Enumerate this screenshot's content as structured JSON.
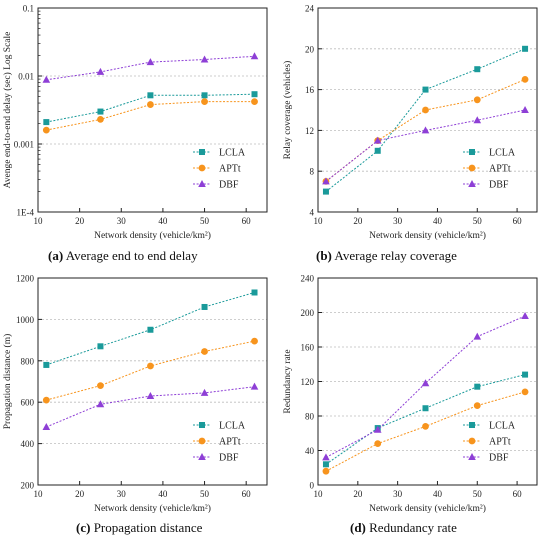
{
  "legend_labels": [
    "LCLA",
    "APTt",
    "DBF"
  ],
  "series_colors": {
    "LCLA": "#1a9a9a",
    "APTt": "#f7941d",
    "DBF": "#8e3fd6"
  },
  "captions": [
    {
      "letter": "(a)",
      "text": " Average end to end delay"
    },
    {
      "letter": "(b)",
      "text": " Average relay coverage"
    },
    {
      "letter": "(c)",
      "text": " Propagation distance"
    },
    {
      "letter": "(d)",
      "text": " Redundancy rate"
    }
  ],
  "chart_data": [
    {
      "type": "line",
      "ylabel": "Avenge end-to-end delay (sec) Log Scale",
      "xlabel": "Network density (vehicle/km²)",
      "x": [
        12,
        25,
        37,
        50,
        62
      ],
      "xlim": [
        10,
        65
      ],
      "xticks": [
        10,
        20,
        30,
        40,
        50,
        60
      ],
      "ylog": true,
      "ylim": [
        0.0001,
        0.1
      ],
      "yticks": [
        0.0001,
        0.001,
        0.01,
        0.1
      ],
      "ytick_labels": [
        "1E-4",
        "0.001",
        "0.01",
        "0.1"
      ],
      "grid": "horizontal dotted",
      "legend_position": "bottom-right",
      "series": [
        {
          "name": "LCLA",
          "values": [
            0.0021,
            0.003,
            0.0052,
            0.0052,
            0.0054
          ]
        },
        {
          "name": "APTt",
          "values": [
            0.0016,
            0.0023,
            0.0038,
            0.0042,
            0.0042
          ]
        },
        {
          "name": "DBF",
          "values": [
            0.0088,
            0.0115,
            0.016,
            0.0175,
            0.0195
          ]
        }
      ]
    },
    {
      "type": "line",
      "ylabel": "Relay coverage (vehicles)",
      "xlabel": "Network density (vehicle/km²)",
      "x": [
        12,
        25,
        37,
        50,
        62
      ],
      "xlim": [
        10,
        65
      ],
      "xticks": [
        10,
        20,
        30,
        40,
        50,
        60
      ],
      "ylim": [
        4,
        24
      ],
      "yticks": [
        4,
        8,
        12,
        16,
        20,
        24
      ],
      "grid": "horizontal dotted",
      "legend_position": "bottom-right",
      "series": [
        {
          "name": "LCLA",
          "values": [
            6,
            10,
            16,
            18,
            20
          ]
        },
        {
          "name": "APTt",
          "values": [
            7,
            11,
            14,
            15,
            17
          ]
        },
        {
          "name": "DBF",
          "values": [
            7,
            11,
            12,
            13,
            14
          ]
        }
      ]
    },
    {
      "type": "line",
      "ylabel": "Propagation distance (m)",
      "xlabel": "Network density (vehicle/km²)",
      "x": [
        12,
        25,
        37,
        50,
        62
      ],
      "xlim": [
        10,
        65
      ],
      "xticks": [
        10,
        20,
        30,
        40,
        50,
        60
      ],
      "ylim": [
        200,
        1200
      ],
      "yticks": [
        200,
        400,
        600,
        800,
        1000,
        1200
      ],
      "grid": "horizontal dotted",
      "legend_position": "bottom-right",
      "series": [
        {
          "name": "LCLA",
          "values": [
            780,
            870,
            950,
            1060,
            1130
          ]
        },
        {
          "name": "APTt",
          "values": [
            610,
            680,
            775,
            845,
            895
          ]
        },
        {
          "name": "DBF",
          "values": [
            480,
            590,
            630,
            645,
            675
          ]
        }
      ]
    },
    {
      "type": "line",
      "ylabel": "Redundancy rate",
      "xlabel": "Network density (vehicle/km²)",
      "x": [
        12,
        25,
        37,
        50,
        62
      ],
      "xlim": [
        10,
        65
      ],
      "xticks": [
        10,
        20,
        30,
        40,
        50,
        60
      ],
      "ylim": [
        0,
        240
      ],
      "yticks": [
        0,
        40,
        80,
        120,
        160,
        200,
        240
      ],
      "grid": "horizontal dotted",
      "legend_position": "bottom-right",
      "series": [
        {
          "name": "LCLA",
          "values": [
            24,
            66,
            89,
            114,
            128
          ]
        },
        {
          "name": "APTt",
          "values": [
            16,
            48,
            68,
            92,
            108
          ]
        },
        {
          "name": "DBF",
          "values": [
            32,
            64,
            118,
            172,
            196
          ]
        }
      ]
    }
  ]
}
